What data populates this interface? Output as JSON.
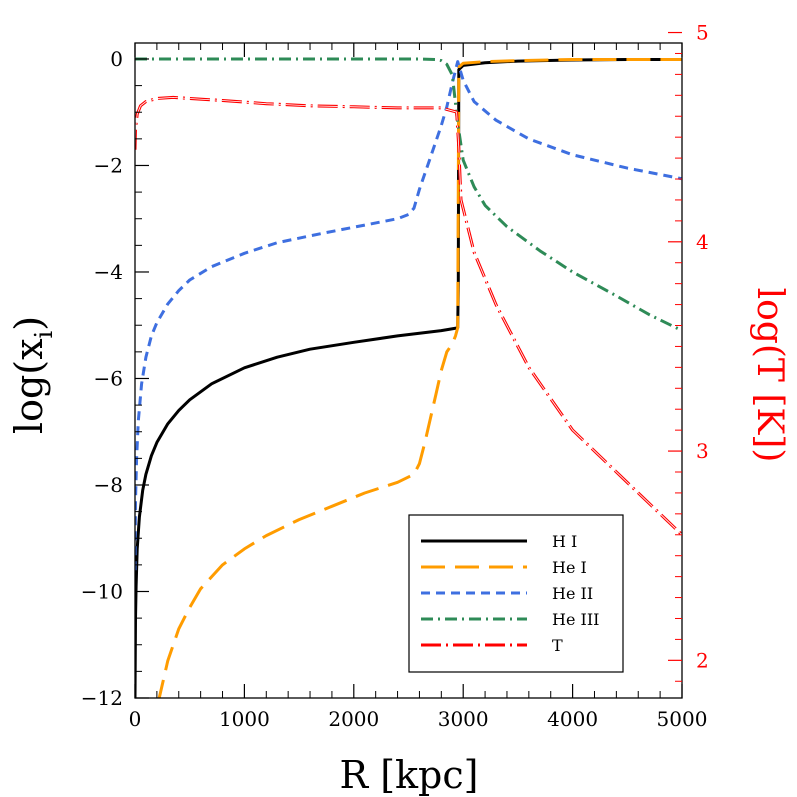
{
  "chart_data": {
    "type": "line",
    "title": "",
    "xlabel": "R [kpc]",
    "ylabel_left": "log(x_i)",
    "ylabel_right": "log(T [K])",
    "xlim": [
      0,
      5000
    ],
    "ylim_left": [
      -12,
      0.3
    ],
    "ylim_right": [
      1.82,
      4.95
    ],
    "x_ticks": [
      0,
      1000,
      2000,
      3000,
      4000,
      5000
    ],
    "x_tick_labels": [
      "0",
      "1000",
      "2000",
      "3000",
      "4000",
      "5000"
    ],
    "y_left_ticks": [
      0,
      -2,
      -4,
      -6,
      -8,
      -10,
      -12
    ],
    "y_left_tick_labels": [
      "0",
      "−2",
      "−4",
      "−6",
      "−8",
      "−10",
      "−12"
    ],
    "y_right_ticks": [
      2,
      3,
      4,
      5
    ],
    "y_right_tick_labels": [
      "2",
      "3",
      "4",
      "5"
    ],
    "legend_position": "bottom-right",
    "series": [
      {
        "name": "H I",
        "axis": "left",
        "color": "#000000",
        "style": "solid",
        "x": [
          0,
          5,
          10,
          20,
          40,
          70,
          100,
          150,
          200,
          300,
          400,
          500,
          700,
          1000,
          1300,
          1600,
          2000,
          2400,
          2800,
          2950,
          2955,
          2960,
          3000,
          3200,
          3500,
          4000,
          4500,
          5000
        ],
        "y": [
          -12,
          -10.5,
          -9.9,
          -9.2,
          -8.6,
          -8.1,
          -7.8,
          -7.45,
          -7.2,
          -6.85,
          -6.6,
          -6.4,
          -6.1,
          -5.8,
          -5.6,
          -5.45,
          -5.32,
          -5.2,
          -5.1,
          -5.05,
          -4.2,
          -0.2,
          -0.12,
          -0.07,
          -0.04,
          -0.02,
          -0.01,
          -0.01
        ]
      },
      {
        "name": "He I",
        "axis": "left",
        "color": "#ff9c00",
        "style": "long-dash",
        "x": [
          210,
          300,
          400,
          500,
          600,
          800,
          1000,
          1200,
          1500,
          1800,
          2100,
          2400,
          2550,
          2600,
          2650,
          2700,
          2750,
          2800,
          2850,
          2900,
          2930,
          2950,
          2960,
          3000,
          3200,
          3500,
          4000,
          4500,
          5000
        ],
        "y": [
          -12.1,
          -11.3,
          -10.7,
          -10.3,
          -9.95,
          -9.5,
          -9.2,
          -8.95,
          -8.65,
          -8.4,
          -8.15,
          -7.95,
          -7.8,
          -7.6,
          -7.2,
          -6.75,
          -6.3,
          -5.85,
          -5.5,
          -5.35,
          -5.2,
          -5.05,
          -0.15,
          -0.08,
          -0.05,
          -0.03,
          -0.01,
          -0.01,
          -0.01
        ]
      },
      {
        "name": "He II",
        "axis": "left",
        "color": "#3e6fe0",
        "style": "short-dash",
        "x": [
          0,
          5,
          15,
          30,
          60,
          100,
          150,
          200,
          300,
          400,
          500,
          700,
          1000,
          1300,
          1700,
          2100,
          2400,
          2500,
          2550,
          2600,
          2700,
          2800,
          2850,
          2900,
          2950,
          3000,
          3100,
          3300,
          3600,
          4000,
          4500,
          5000
        ],
        "y": [
          -9.6,
          -8.3,
          -7.5,
          -6.8,
          -6.1,
          -5.6,
          -5.2,
          -4.95,
          -4.6,
          -4.35,
          -4.15,
          -3.9,
          -3.65,
          -3.45,
          -3.28,
          -3.12,
          -3.0,
          -2.92,
          -2.8,
          -2.45,
          -1.85,
          -1.25,
          -0.9,
          -0.45,
          -0.05,
          -0.4,
          -0.8,
          -1.15,
          -1.5,
          -1.8,
          -2.05,
          -2.25
        ]
      },
      {
        "name": "He III",
        "axis": "left",
        "color": "#2e8b57",
        "style": "dash-dot",
        "x": [
          0,
          1000,
          2000,
          2600,
          2750,
          2800,
          2850,
          2900,
          2950,
          3000,
          3100,
          3200,
          3400,
          3700,
          4000,
          4400,
          4700,
          5000
        ],
        "y": [
          0,
          0,
          0,
          0,
          -0.01,
          -0.03,
          -0.1,
          -0.3,
          -1.2,
          -1.9,
          -2.4,
          -2.75,
          -3.15,
          -3.6,
          -4.0,
          -4.45,
          -4.8,
          -5.1
        ]
      },
      {
        "name": "T",
        "axis": "right",
        "color": "#ff0000",
        "style": "long-dash-dot",
        "x": [
          0,
          5,
          20,
          50,
          100,
          200,
          350,
          500,
          800,
          1200,
          1600,
          2000,
          2400,
          2800,
          2940,
          2960,
          2980,
          3100,
          3300,
          3600,
          4000,
          4500,
          5000
        ],
        "y": [
          4.44,
          4.54,
          4.61,
          4.65,
          4.67,
          4.685,
          4.69,
          4.685,
          4.675,
          4.66,
          4.65,
          4.645,
          4.64,
          4.64,
          4.62,
          4.45,
          4.2,
          3.95,
          3.7,
          3.4,
          3.1,
          2.85,
          2.6
        ]
      }
    ]
  }
}
